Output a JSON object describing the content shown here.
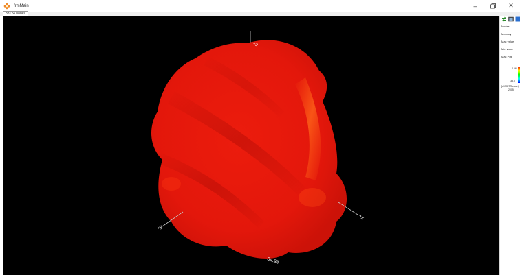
{
  "window": {
    "title": "frmMain",
    "icon": "app-flower-icon",
    "controls": [
      "minimize-icon",
      "restore-icon",
      "close-icon"
    ]
  },
  "viewport": {
    "nodes_label": "33124 nodes",
    "axes": {
      "z_label": "+z",
      "x_label": "+x",
      "y_label": "+y",
      "scale_label": "34.98"
    },
    "surface_color": "#e8190d",
    "highlight_color": "#ff6a1a"
  },
  "panel": {
    "tools": [
      "swap-arrows-icon",
      "image-icon",
      "info-icon"
    ],
    "labels": {
      "nodes": "Nodes",
      "memory": "Memory",
      "max_value": "Max value",
      "min_value": "Min value",
      "max_pos": "Max Pos"
    },
    "legend": {
      "max": "4.56",
      "min": "-35.0",
      "unit": "[uVMETRicrosn]",
      "extra": "2005"
    }
  }
}
